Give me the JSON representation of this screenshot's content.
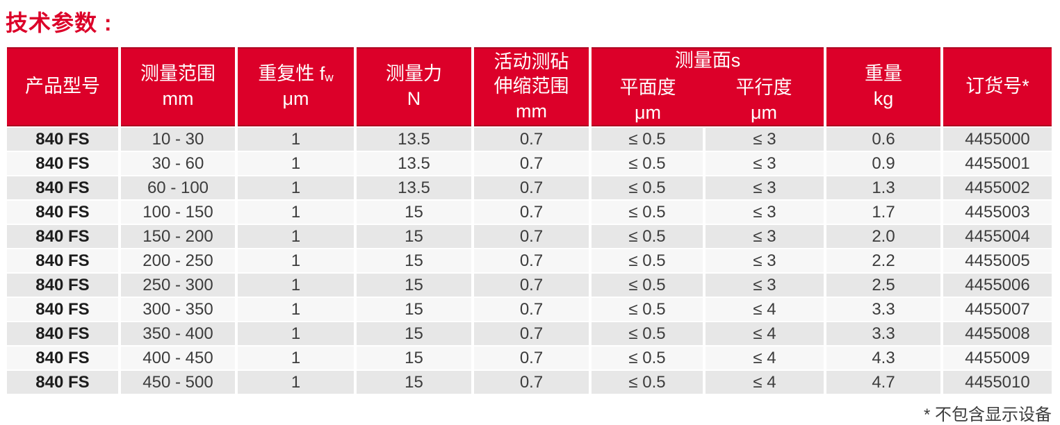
{
  "title": "技术参数 :",
  "footnote": "* 不包含显示设备",
  "colors": {
    "accent_red": "#dc0029",
    "row_stripe_gray": "#e7e7e7",
    "row_stripe_light": "#f7f7f7",
    "header_text": "#ffffff",
    "body_text": "#3c3c3c"
  },
  "table": {
    "headers": {
      "product_model": "产品型号",
      "measuring_range": "测量范围",
      "measuring_range_unit": "mm",
      "repeatability": "重复性 f",
      "repeatability_sub": "w",
      "repeatability_unit": "μm",
      "measuring_force": "测量力",
      "measuring_force_unit": "N",
      "anvil_line1": "活动测砧",
      "anvil_line2": "伸缩范围",
      "anvil_unit": "mm",
      "faces_group": "测量面s",
      "flatness": "平面度",
      "flatness_unit": "μm",
      "parallelism": "平行度",
      "parallelism_unit": "μm",
      "weight": "重量",
      "weight_unit": "kg",
      "order_no": "订货号*"
    },
    "rows": [
      {
        "model": "840 FS",
        "range": "10 - 30",
        "repeatability": "1",
        "force": "13.5",
        "anvil": "0.7",
        "flatness": "≤ 0.5",
        "parallelism": "≤ 3",
        "weight": "0.6",
        "order": "4455000"
      },
      {
        "model": "840 FS",
        "range": "30 - 60",
        "repeatability": "1",
        "force": "13.5",
        "anvil": "0.7",
        "flatness": "≤ 0.5",
        "parallelism": "≤ 3",
        "weight": "0.9",
        "order": "4455001"
      },
      {
        "model": "840 FS",
        "range": "60 - 100",
        "repeatability": "1",
        "force": "13.5",
        "anvil": "0.7",
        "flatness": "≤ 0.5",
        "parallelism": "≤ 3",
        "weight": "1.3",
        "order": "4455002"
      },
      {
        "model": "840 FS",
        "range": "100 - 150",
        "repeatability": "1",
        "force": "15",
        "anvil": "0.7",
        "flatness": "≤ 0.5",
        "parallelism": "≤ 3",
        "weight": "1.7",
        "order": "4455003"
      },
      {
        "model": "840 FS",
        "range": "150 - 200",
        "repeatability": "1",
        "force": "15",
        "anvil": "0.7",
        "flatness": "≤ 0.5",
        "parallelism": "≤ 3",
        "weight": "2.0",
        "order": "4455004"
      },
      {
        "model": "840 FS",
        "range": "200 - 250",
        "repeatability": "1",
        "force": "15",
        "anvil": "0.7",
        "flatness": "≤ 0.5",
        "parallelism": "≤ 3",
        "weight": "2.2",
        "order": "4455005"
      },
      {
        "model": "840 FS",
        "range": "250 - 300",
        "repeatability": "1",
        "force": "15",
        "anvil": "0.7",
        "flatness": "≤ 0.5",
        "parallelism": "≤ 3",
        "weight": "2.5",
        "order": "4455006"
      },
      {
        "model": "840 FS",
        "range": "300 - 350",
        "repeatability": "1",
        "force": "15",
        "anvil": "0.7",
        "flatness": "≤ 0.5",
        "parallelism": "≤ 4",
        "weight": "3.3",
        "order": "4455007"
      },
      {
        "model": "840 FS",
        "range": "350 - 400",
        "repeatability": "1",
        "force": "15",
        "anvil": "0.7",
        "flatness": "≤ 0.5",
        "parallelism": "≤ 4",
        "weight": "3.3",
        "order": "4455008"
      },
      {
        "model": "840 FS",
        "range": "400 - 450",
        "repeatability": "1",
        "force": "15",
        "anvil": "0.7",
        "flatness": "≤ 0.5",
        "parallelism": "≤ 4",
        "weight": "4.3",
        "order": "4455009"
      },
      {
        "model": "840 FS",
        "range": "450 - 500",
        "repeatability": "1",
        "force": "15",
        "anvil": "0.7",
        "flatness": "≤ 0.5",
        "parallelism": "≤ 4",
        "weight": "4.7",
        "order": "4455010"
      }
    ]
  }
}
